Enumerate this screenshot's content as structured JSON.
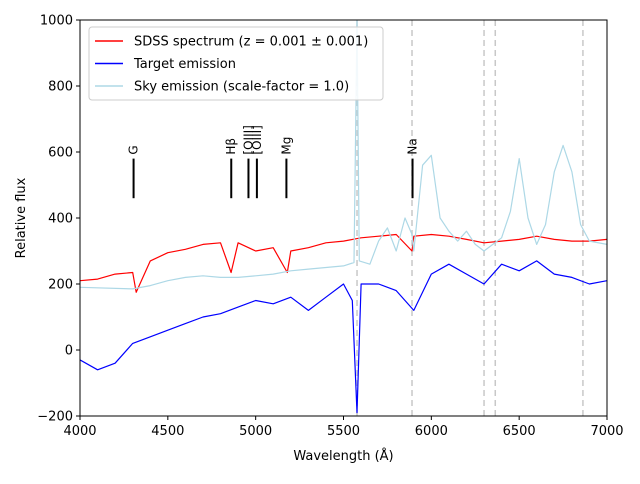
{
  "chart_data": {
    "type": "line",
    "title": "",
    "xlabel": "Wavelength (Å)",
    "ylabel": "Relative flux",
    "xlim": [
      4000,
      7000
    ],
    "ylim": [
      -200,
      1000
    ],
    "xticks": [
      4000,
      4500,
      5000,
      5500,
      6000,
      6500,
      7000
    ],
    "yticks": [
      -200,
      0,
      200,
      400,
      600,
      800,
      1000
    ],
    "legend_position": "top-left",
    "colors": {
      "sdss": "#ff0000",
      "target": "#0000ff",
      "sky": "#add8e6",
      "sky_lines": "#c8c8c8",
      "markers": "#000000"
    },
    "legend": [
      {
        "label": "SDSS spectrum (z = 0.001 ± 0.001)",
        "color": "#ff0000"
      },
      {
        "label": "Target emission",
        "color": "#0000ff"
      },
      {
        "label": "Sky emission (scale-factor = 1.0)",
        "color": "#add8e6"
      }
    ],
    "spectral_lines": [
      {
        "label": "G",
        "wavelength": 4305
      },
      {
        "label": "Hβ",
        "wavelength": 4861
      },
      {
        "label": "[OIII]",
        "wavelength": 4959
      },
      {
        "label": "[OIII]",
        "wavelength": 5007
      },
      {
        "label": "Mg",
        "wavelength": 5175
      },
      {
        "label": "Na",
        "wavelength": 5893
      }
    ],
    "marker_range": [
      460,
      580
    ],
    "sky_lines": [
      5577,
      5890,
      6300,
      6364,
      6863
    ],
    "series": [
      {
        "name": "SDSS spectrum",
        "color": "#ff0000",
        "x": [
          4000,
          4100,
          4200,
          4300,
          4320,
          4400,
          4500,
          4600,
          4700,
          4800,
          4860,
          4900,
          5000,
          5100,
          5180,
          5200,
          5300,
          5400,
          5500,
          5600,
          5700,
          5800,
          5890,
          5900,
          6000,
          6100,
          6200,
          6300,
          6400,
          6500,
          6600,
          6700,
          6800,
          6900,
          7000
        ],
        "values": [
          210,
          215,
          230,
          235,
          175,
          270,
          295,
          305,
          320,
          325,
          235,
          325,
          300,
          310,
          235,
          300,
          310,
          325,
          330,
          340,
          345,
          350,
          300,
          345,
          350,
          345,
          335,
          325,
          330,
          335,
          345,
          335,
          330,
          330,
          335
        ]
      },
      {
        "name": "Target emission",
        "color": "#0000ff",
        "x": [
          4000,
          4100,
          4200,
          4300,
          4400,
          4500,
          4600,
          4700,
          4800,
          4900,
          5000,
          5100,
          5200,
          5300,
          5400,
          5500,
          5550,
          5577,
          5600,
          5700,
          5800,
          5900,
          6000,
          6100,
          6200,
          6300,
          6400,
          6500,
          6600,
          6700,
          6800,
          6900,
          7000
        ],
        "values": [
          -30,
          -60,
          -40,
          20,
          40,
          60,
          80,
          100,
          110,
          130,
          150,
          140,
          160,
          120,
          160,
          200,
          150,
          -190,
          200,
          200,
          180,
          120,
          230,
          260,
          230,
          200,
          260,
          240,
          270,
          230,
          220,
          200,
          210
        ]
      },
      {
        "name": "Sky emission",
        "color": "#add8e6",
        "x": [
          4000,
          4300,
          4400,
          4500,
          4600,
          4700,
          4800,
          4900,
          5000,
          5100,
          5200,
          5300,
          5400,
          5500,
          5560,
          5577,
          5590,
          5650,
          5700,
          5750,
          5800,
          5850,
          5890,
          5900,
          5950,
          6000,
          6050,
          6100,
          6150,
          6200,
          6250,
          6300,
          6350,
          6400,
          6450,
          6500,
          6550,
          6600,
          6650,
          6700,
          6750,
          6800,
          6850,
          6900,
          7000
        ],
        "values": [
          190,
          185,
          195,
          210,
          220,
          225,
          220,
          220,
          225,
          230,
          240,
          245,
          250,
          255,
          265,
          1000,
          270,
          260,
          330,
          370,
          300,
          400,
          350,
          300,
          560,
          590,
          400,
          360,
          330,
          360,
          320,
          300,
          320,
          340,
          420,
          580,
          400,
          320,
          380,
          540,
          620,
          540,
          380,
          330,
          320
        ]
      }
    ]
  }
}
